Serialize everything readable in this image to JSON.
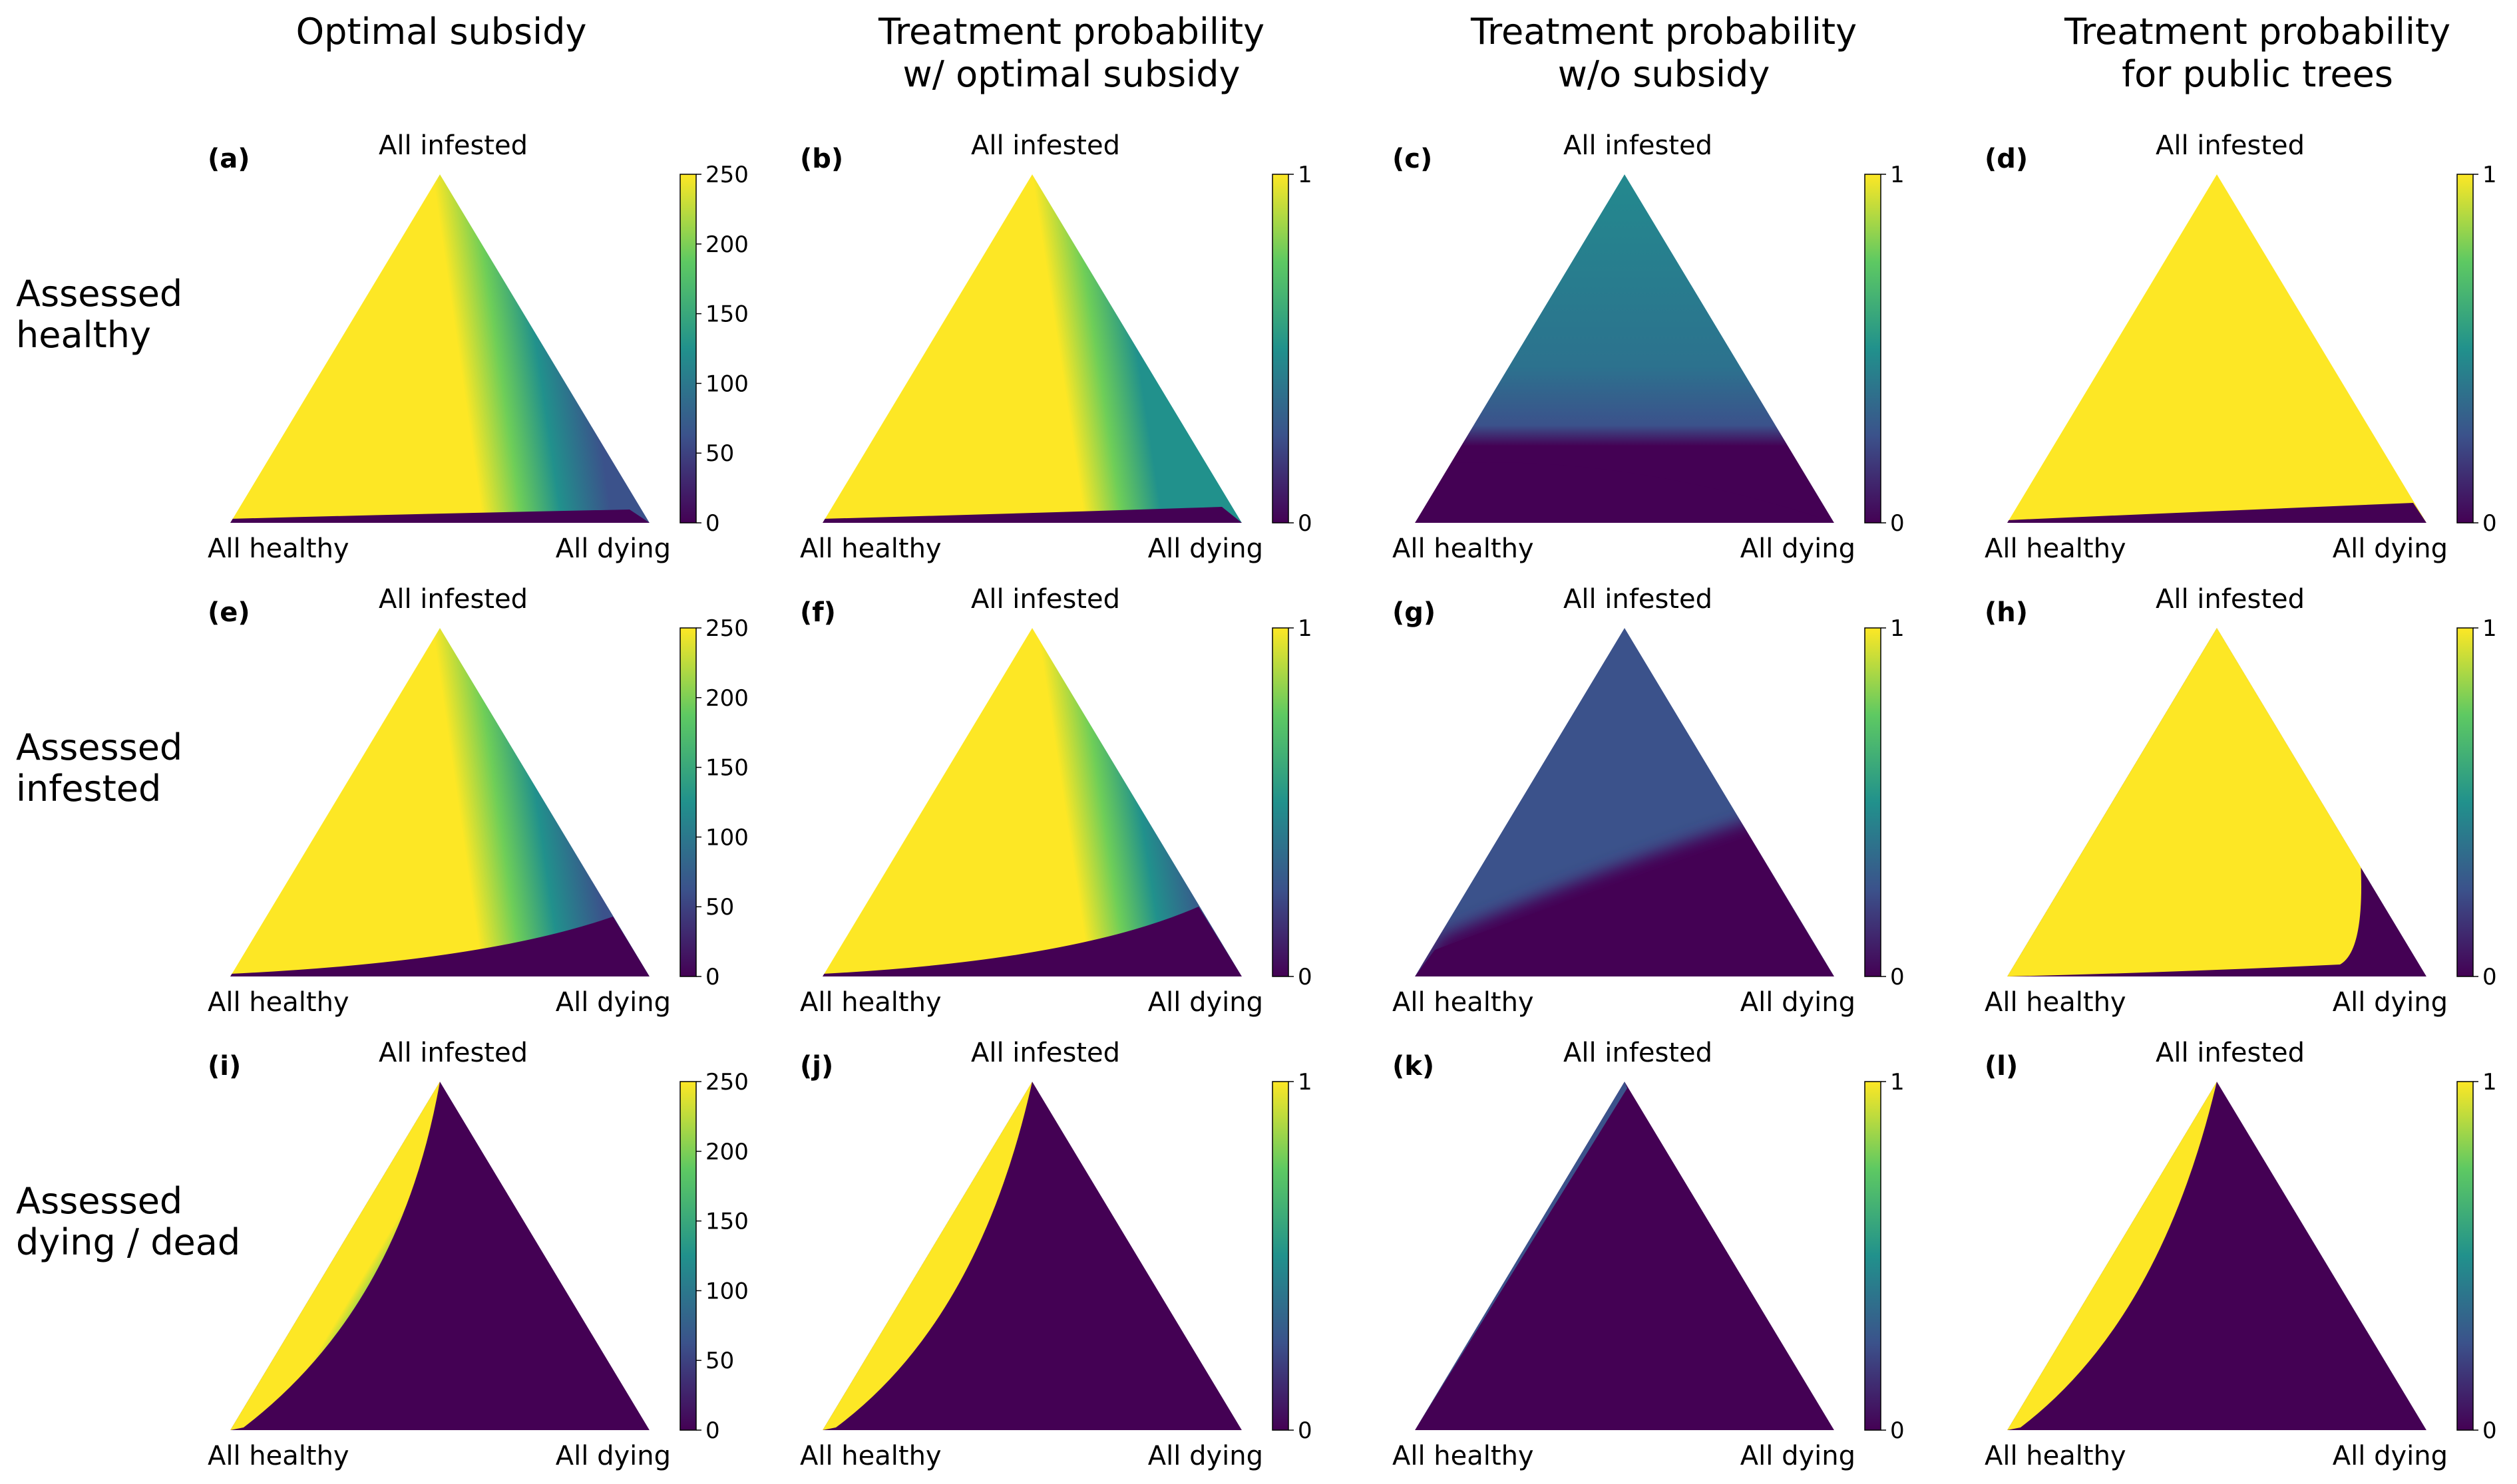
{
  "figure": {
    "column_titles": [
      [
        "Optimal subsidy"
      ],
      [
        "Treatment probability",
        "w/ optimal subsidy"
      ],
      [
        "Treatment probability",
        "w/o subsidy"
      ],
      [
        "Treatment probability",
        "for public trees"
      ]
    ],
    "row_labels": [
      [
        "Assessed",
        "healthy"
      ],
      [
        "Assessed",
        "infested"
      ],
      [
        "Assessed",
        "dying / dead"
      ]
    ],
    "vertex_labels": {
      "top": "All infested",
      "bottom_left": "All healthy",
      "bottom_right": "All dying"
    },
    "colormap": "viridis",
    "colors": {
      "low": "#440154",
      "mid": "#21918c",
      "high": "#fde725"
    }
  },
  "chart_data": [
    {
      "panel": "(a)",
      "type": "heatmap",
      "row": "Assessed healthy",
      "column": "Optimal subsidy",
      "colorbar": {
        "range": [
          0,
          250
        ],
        "ticks": [
          0,
          50,
          100,
          150,
          200,
          250
        ]
      }
    },
    {
      "panel": "(b)",
      "type": "heatmap",
      "row": "Assessed healthy",
      "column": "Treatment probability w/ optimal subsidy",
      "colorbar": {
        "range": [
          0,
          1
        ],
        "ticks": [
          0,
          1
        ]
      }
    },
    {
      "panel": "(c)",
      "type": "heatmap",
      "row": "Assessed healthy",
      "column": "Treatment probability w/o subsidy",
      "colorbar": {
        "range": [
          0,
          1
        ],
        "ticks": [
          0,
          1
        ]
      }
    },
    {
      "panel": "(d)",
      "type": "heatmap",
      "row": "Assessed healthy",
      "column": "Treatment probability for public trees",
      "colorbar": {
        "range": [
          0,
          1
        ],
        "ticks": [
          0,
          1
        ]
      }
    },
    {
      "panel": "(e)",
      "type": "heatmap",
      "row": "Assessed infested",
      "column": "Optimal subsidy",
      "colorbar": {
        "range": [
          0,
          250
        ],
        "ticks": [
          0,
          50,
          100,
          150,
          200,
          250
        ]
      }
    },
    {
      "panel": "(f)",
      "type": "heatmap",
      "row": "Assessed infested",
      "column": "Treatment probability w/ optimal subsidy",
      "colorbar": {
        "range": [
          0,
          1
        ],
        "ticks": [
          0,
          1
        ]
      }
    },
    {
      "panel": "(g)",
      "type": "heatmap",
      "row": "Assessed infested",
      "column": "Treatment probability w/o subsidy",
      "colorbar": {
        "range": [
          0,
          1
        ],
        "ticks": [
          0,
          1
        ]
      }
    },
    {
      "panel": "(h)",
      "type": "heatmap",
      "row": "Assessed infested",
      "column": "Treatment probability for public trees",
      "colorbar": {
        "range": [
          0,
          1
        ],
        "ticks": [
          0,
          1
        ]
      }
    },
    {
      "panel": "(i)",
      "type": "heatmap",
      "row": "Assessed dying / dead",
      "column": "Optimal subsidy",
      "colorbar": {
        "range": [
          0,
          250
        ],
        "ticks": [
          0,
          50,
          100,
          150,
          200,
          250
        ]
      }
    },
    {
      "panel": "(j)",
      "type": "heatmap",
      "row": "Assessed dying / dead",
      "column": "Treatment probability w/ optimal subsidy",
      "colorbar": {
        "range": [
          0,
          1
        ],
        "ticks": [
          0,
          1
        ]
      }
    },
    {
      "panel": "(k)",
      "type": "heatmap",
      "row": "Assessed dying / dead",
      "column": "Treatment probability w/o subsidy",
      "colorbar": {
        "range": [
          0,
          1
        ],
        "ticks": [
          0,
          1
        ]
      }
    },
    {
      "panel": "(l)",
      "type": "heatmap",
      "row": "Assessed dying / dead",
      "column": "Treatment probability for public trees",
      "colorbar": {
        "range": [
          0,
          1
        ],
        "ticks": [
          0,
          1
        ]
      }
    }
  ]
}
